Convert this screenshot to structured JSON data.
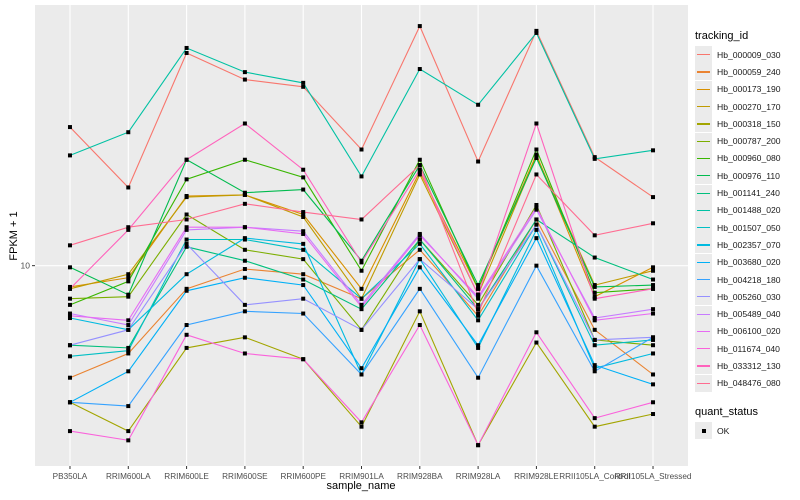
{
  "chart_data": {
    "type": "line",
    "title": "",
    "xlabel": "sample_name",
    "ylabel": "FPKM + 1",
    "yscale": "log10",
    "ylim": [
      3.0,
      47.9
    ],
    "y_ticks": [
      10
    ],
    "y_tick_labels": [
      "10"
    ],
    "grid": true,
    "legend_position": "right",
    "categories": [
      "PB350LA",
      "RRIM600LA",
      "RRIM600LE",
      "RRIM600SE",
      "RRIM600PE",
      "RRIM901LA",
      "RRIM928BA",
      "RRIM928LA",
      "RRIM928LE",
      "RRII105LA_Control",
      "RRII105LA_Stressed"
    ],
    "legend_title": "tracking_id",
    "legend2_title": "quant_status",
    "legend2_items": [
      "OK"
    ],
    "series": [
      {
        "name": "Hb_000009_030",
        "color": "#F8766D",
        "values": [
          23.0,
          16.0,
          35.9,
          30.6,
          29.3,
          20.1,
          42.2,
          18.7,
          41.0,
          19.2,
          15.1
        ]
      },
      {
        "name": "Hb_000059_240",
        "color": "#EA8331",
        "values": [
          5.1,
          5.9,
          8.7,
          9.8,
          9.5,
          8.2,
          11.0,
          7.4,
          13.2,
          6.8,
          5.2
        ]
      },
      {
        "name": "Hb_000173_190",
        "color": "#D89000",
        "values": [
          8.8,
          9.3,
          15.2,
          15.3,
          13.6,
          8.7,
          17.6,
          8.7,
          19.5,
          8.3,
          9.9
        ]
      },
      {
        "name": "Hb_000270_170",
        "color": "#C09B00",
        "values": [
          8.7,
          9.5,
          15.1,
          15.3,
          13.4,
          8.2,
          17.3,
          8.4,
          19.3,
          8.9,
          9.7
        ]
      },
      {
        "name": "Hb_000318_150",
        "color": "#A3A500",
        "values": [
          4.4,
          3.7,
          6.1,
          6.5,
          5.7,
          3.8,
          7.6,
          3.4,
          6.3,
          3.8,
          4.1
        ]
      },
      {
        "name": "Hb_000787_200",
        "color": "#7CAE00",
        "values": [
          8.2,
          8.3,
          13.6,
          11.0,
          10.4,
          6.8,
          11.7,
          7.9,
          14.4,
          6.4,
          6.2
        ]
      },
      {
        "name": "Hb_000960_080",
        "color": "#39B600",
        "values": [
          7.9,
          9.1,
          16.8,
          18.9,
          17.0,
          9.7,
          18.9,
          8.7,
          20.1,
          8.5,
          8.7
        ]
      },
      {
        "name": "Hb_000976_110",
        "color": "#00BB4E",
        "values": [
          9.9,
          8.4,
          18.9,
          15.5,
          15.8,
          10.3,
          18.3,
          8.9,
          19.1,
          8.8,
          8.9
        ]
      },
      {
        "name": "Hb_001141_240",
        "color": "#00BF7D",
        "values": [
          6.2,
          6.1,
          11.2,
          10.3,
          9.2,
          7.7,
          11.7,
          7.7,
          13.2,
          10.5,
          9.2
        ]
      },
      {
        "name": "Hb_001488_020",
        "color": "#00C1A3",
        "values": [
          19.4,
          22.3,
          37.0,
          32.0,
          30.0,
          17.1,
          32.6,
          26.3,
          40.5,
          19.0,
          20.0
        ]
      },
      {
        "name": "Hb_001507_050",
        "color": "#00BFC4",
        "values": [
          5.8,
          6.0,
          11.7,
          11.7,
          11.0,
          8.2,
          11.4,
          7.2,
          12.8,
          6.2,
          6.4
        ]
      },
      {
        "name": "Hb_002357_070",
        "color": "#00BAE0",
        "values": [
          7.3,
          6.8,
          9.5,
          11.8,
          11.4,
          5.2,
          10.4,
          6.1,
          12.4,
          5.4,
          5.9
        ]
      },
      {
        "name": "Hb_003680_020",
        "color": "#00B0F6",
        "values": [
          4.4,
          5.3,
          8.6,
          9.3,
          8.9,
          5.4,
          9.9,
          6.2,
          11.8,
          5.5,
          4.9
        ]
      },
      {
        "name": "Hb_004218_180",
        "color": "#35A2FF",
        "values": [
          4.4,
          4.3,
          7.0,
          7.6,
          7.5,
          5.2,
          8.7,
          5.1,
          10.0,
          5.3,
          6.5
        ]
      },
      {
        "name": "Hb_005260_030",
        "color": "#9590FF",
        "values": [
          6.2,
          6.8,
          11.4,
          7.9,
          8.2,
          6.8,
          10.4,
          7.7,
          12.8,
          6.4,
          6.5
        ]
      },
      {
        "name": "Hb_005489_040",
        "color": "#C77CFF",
        "values": [
          7.5,
          7.0,
          12.4,
          12.6,
          12.3,
          7.9,
          12.1,
          8.2,
          14.0,
          7.3,
          7.7
        ]
      },
      {
        "name": "Hb_006100_020",
        "color": "#E76BF3",
        "values": [
          7.4,
          7.2,
          12.6,
          12.6,
          12.1,
          7.8,
          12.0,
          8.3,
          14.2,
          7.2,
          7.5
        ]
      },
      {
        "name": "Hb_011674_040",
        "color": "#FA62DB",
        "values": [
          3.7,
          3.5,
          6.6,
          5.9,
          5.7,
          3.9,
          7.0,
          3.4,
          6.7,
          4.0,
          4.4
        ]
      },
      {
        "name": "Hb_033312_130",
        "color": "#FF62BC",
        "values": [
          8.7,
          12.4,
          18.9,
          23.5,
          17.8,
          10.2,
          17.8,
          8.4,
          23.5,
          8.2,
          8.7
        ]
      },
      {
        "name": "Hb_048476_080",
        "color": "#FF6C91",
        "values": [
          11.3,
          12.6,
          13.2,
          14.5,
          13.8,
          13.2,
          18.3,
          7.5,
          17.3,
          12.0,
          12.9
        ]
      }
    ]
  }
}
